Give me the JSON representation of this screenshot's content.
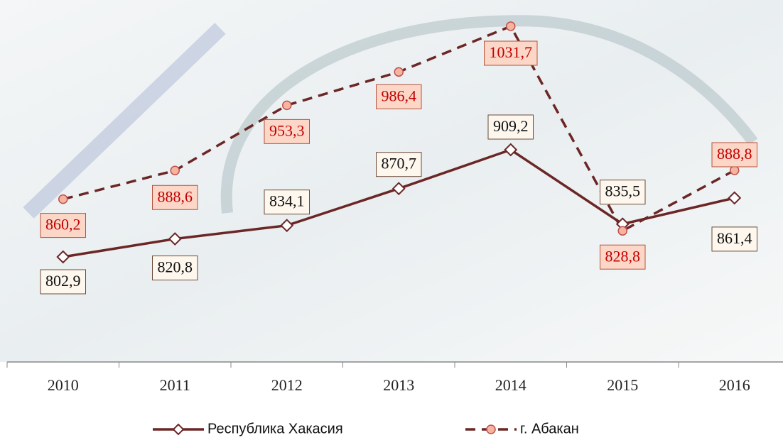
{
  "chart_data": {
    "type": "line",
    "categories": [
      "2010",
      "2011",
      "2012",
      "2013",
      "2014",
      "2015",
      "2016"
    ],
    "series": [
      {
        "name": "Республика Хакасия",
        "color": "#6b2626",
        "marker": "diamond",
        "dash": false,
        "values": [
          802.9,
          820.8,
          834.1,
          870.7,
          909.2,
          835.5,
          861.4
        ],
        "value_labels": [
          "802,9",
          "820,8",
          "834,1",
          "870,7",
          "909,2",
          "835,5",
          "861,4"
        ]
      },
      {
        "name": "г. Абакан",
        "color": "#6b2626",
        "marker": "circle",
        "dash": true,
        "values": [
          860.2,
          888.6,
          953.3,
          986.4,
          1031.7,
          828.8,
          888.8
        ],
        "value_labels": [
          "860,2",
          "888,6",
          "953,3",
          "986,4",
          "1031,7",
          "828,8",
          "888,8"
        ]
      }
    ]
  }
}
